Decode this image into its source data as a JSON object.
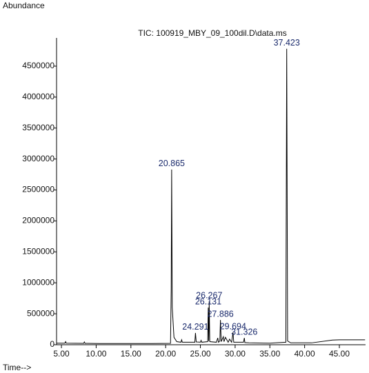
{
  "chart_data": {
    "type": "line",
    "title": "TIC: 100919_MBY_09_100dil.D\\data.ms",
    "y_label": "Abundance",
    "x_label": "Time-->",
    "color": "#000000",
    "x": [
      4.3,
      5.5,
      5.6,
      5.7,
      8.2,
      8.3,
      8.4,
      10.5,
      14,
      18,
      20.7,
      20.8,
      20.865,
      20.95,
      21.2,
      21.6,
      22.2,
      22.3,
      22.4,
      24.2,
      24.291,
      24.4,
      25.0,
      25.1,
      25.2,
      26.05,
      26.131,
      26.2,
      26.267,
      26.35,
      27.3,
      27.5,
      27.6,
      27.8,
      27.886,
      28.0,
      28.3,
      28.4,
      28.6,
      29.0,
      29.2,
      29.5,
      29.694,
      29.8,
      31.2,
      31.326,
      31.4,
      32,
      35,
      37.3,
      37.423,
      37.55,
      38,
      41,
      44,
      45,
      48.7
    ],
    "values": [
      25000,
      25000,
      50000,
      25000,
      22000,
      45000,
      22000,
      20000,
      20000,
      20000,
      22000,
      900000,
      2830000,
      600000,
      120000,
      50000,
      40000,
      80000,
      40000,
      40000,
      190000,
      45000,
      40000,
      70000,
      40000,
      50000,
      600000,
      60000,
      700000,
      50000,
      40000,
      110000,
      40000,
      60000,
      400000,
      50000,
      130000,
      50000,
      120000,
      40000,
      90000,
      40000,
      200000,
      40000,
      40000,
      110000,
      35000,
      30000,
      25000,
      40000,
      4780000,
      60000,
      30000,
      30000,
      75000,
      80000,
      80000
    ],
    "annotations": [
      {
        "text": "20.865",
        "x": 20.865,
        "y": 2830000
      },
      {
        "text": "37.423",
        "x": 37.423,
        "y": 4780000
      },
      {
        "text": "24.291",
        "x": 24.291,
        "y": 190000
      },
      {
        "text": "26.267",
        "x": 26.267,
        "y": 700000
      },
      {
        "text": "26.131",
        "x": 26.131,
        "y": 600000
      },
      {
        "text": "27.886",
        "x": 27.886,
        "y": 400000
      },
      {
        "text": "29.694",
        "x": 29.694,
        "y": 200000
      },
      {
        "text": "31.326",
        "x": 31.326,
        "y": 110000
      }
    ],
    "xlim": [
      4.3,
      48.77
    ],
    "ylim": [
      0,
      4956000
    ],
    "xticks": [
      {
        "value": 5,
        "label": "5.00"
      },
      {
        "value": 10,
        "label": "10.00"
      },
      {
        "value": 15,
        "label": "15.00"
      },
      {
        "value": 20,
        "label": "20.00"
      },
      {
        "value": 25,
        "label": "25.00"
      },
      {
        "value": 30,
        "label": "30.00"
      },
      {
        "value": 35,
        "label": "35.00"
      },
      {
        "value": 40,
        "label": "40.00"
      },
      {
        "value": 45,
        "label": "45.00"
      }
    ],
    "yticks": [
      0,
      500000,
      1000000,
      1500000,
      2000000,
      2500000,
      3000000,
      3500000,
      4000000,
      4500000
    ]
  }
}
